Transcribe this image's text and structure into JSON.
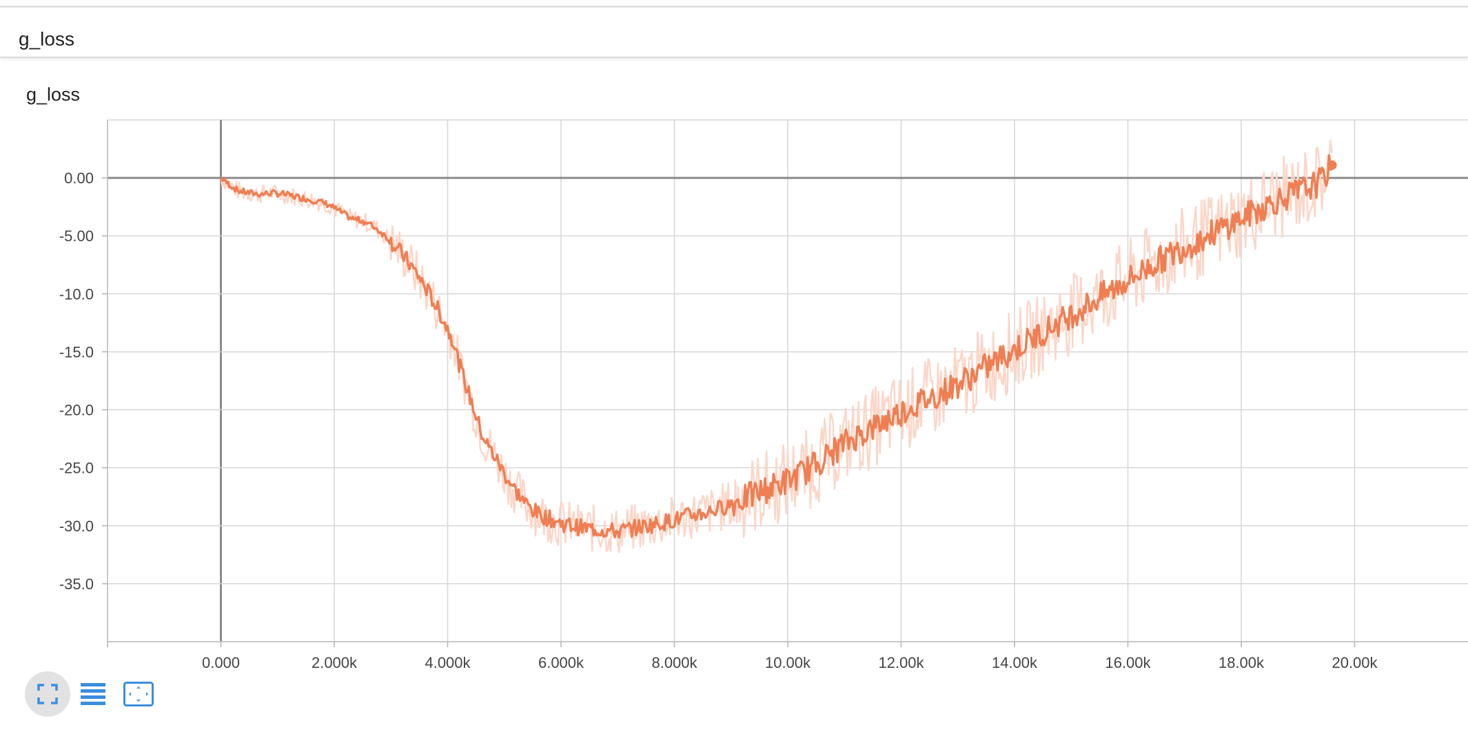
{
  "header": {
    "title": "g_loss"
  },
  "chart_title": "g_loss",
  "toolbar": {
    "buttons": [
      {
        "icon": "fit-domain-icon",
        "active": true
      },
      {
        "icon": "data-table-icon",
        "active": false
      },
      {
        "icon": "expand-chart-icon",
        "active": false
      }
    ]
  },
  "colors": {
    "series": "#ef7e52",
    "series_raw": "#fbd6c8",
    "grid": "#d6d6d6",
    "zero_line": "#8a8a8a",
    "accent": "#3b8ede"
  },
  "chart_data": {
    "type": "line",
    "title": "g_loss",
    "xlabel": "",
    "ylabel": "",
    "xlim": [
      -2000,
      22000
    ],
    "ylim": [
      -40,
      5
    ],
    "x_ticks": [
      0,
      2000,
      4000,
      6000,
      8000,
      10000,
      12000,
      14000,
      16000,
      18000,
      20000
    ],
    "x_tick_labels": [
      "0.000",
      "2.000k",
      "4.000k",
      "6.000k",
      "8.000k",
      "10.00k",
      "12.00k",
      "14.00k",
      "16.00k",
      "18.00k",
      "20.00k"
    ],
    "y_ticks": [
      0,
      -5,
      -10,
      -15,
      -20,
      -25,
      -30,
      -35
    ],
    "y_tick_labels": [
      "0.00",
      "-5.00",
      "-10.0",
      "-15.0",
      "-20.0",
      "-25.0",
      "-30.0",
      "-35.0"
    ],
    "grid": true,
    "series": [
      {
        "x": [
          0,
          100,
          300,
          500,
          700,
          900,
          1100,
          1300,
          1500,
          1700,
          1900,
          2100,
          2300,
          2500,
          2700,
          2900,
          3100,
          3300,
          3500,
          3700,
          3900,
          4100,
          4200,
          4300,
          4400,
          4500,
          4600,
          4700,
          4800,
          4900,
          5000,
          5200,
          5400,
          5600,
          5800,
          6000,
          6200,
          6400,
          6600,
          6800,
          7000,
          7200,
          7400,
          7600,
          7800,
          8000,
          8200,
          8400,
          8600,
          8800,
          9000,
          9200,
          9400,
          9600,
          9800,
          10000,
          10200,
          10400,
          10600,
          10800,
          11000,
          11200,
          11400,
          11600,
          11800,
          12000,
          12200,
          12400,
          12600,
          12800,
          13000,
          13200,
          13400,
          13600,
          13800,
          14000,
          14200,
          14400,
          14600,
          14800,
          15000,
          15200,
          15400,
          15600,
          15800,
          16000,
          16200,
          16400,
          16600,
          16800,
          17000,
          17200,
          17400,
          17600,
          17800,
          18000,
          18200,
          18400,
          18600,
          18800,
          19000,
          19200,
          19400,
          19600
        ],
        "values": [
          0.0,
          -0.4,
          -1.1,
          -1.3,
          -1.4,
          -1.3,
          -1.4,
          -1.6,
          -1.8,
          -2.0,
          -2.3,
          -2.9,
          -3.5,
          -3.7,
          -4.2,
          -5.0,
          -6.0,
          -7.2,
          -8.6,
          -10.2,
          -12.0,
          -14.0,
          -16.0,
          -17.5,
          -19.0,
          -20.5,
          -22.0,
          -23.0,
          -23.8,
          -24.6,
          -25.5,
          -27.0,
          -28.2,
          -29.0,
          -29.4,
          -29.8,
          -30.0,
          -30.2,
          -30.3,
          -30.4,
          -30.5,
          -30.3,
          -30.1,
          -29.9,
          -29.7,
          -29.5,
          -29.2,
          -29.0,
          -28.8,
          -28.5,
          -28.1,
          -27.7,
          -27.3,
          -26.9,
          -26.5,
          -26.1,
          -25.6,
          -25.0,
          -24.3,
          -23.6,
          -22.9,
          -22.3,
          -21.8,
          -21.3,
          -20.7,
          -20.2,
          -19.7,
          -19.2,
          -18.8,
          -18.3,
          -17.8,
          -17.2,
          -16.6,
          -16.0,
          -15.4,
          -14.8,
          -14.2,
          -13.6,
          -13.0,
          -12.4,
          -11.8,
          -11.2,
          -10.6,
          -10.0,
          -9.4,
          -8.8,
          -8.2,
          -7.6,
          -7.0,
          -6.5,
          -6.0,
          -5.5,
          -5.0,
          -4.5,
          -4.0,
          -3.5,
          -3.0,
          -2.5,
          -2.0,
          -1.6,
          -1.2,
          -0.8,
          -0.3,
          1.1
        ]
      }
    ]
  }
}
